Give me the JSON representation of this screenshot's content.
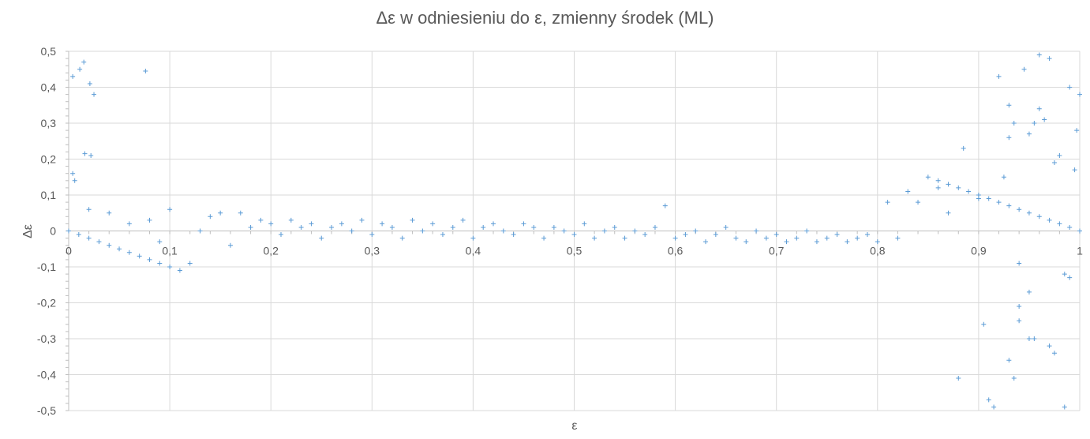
{
  "chart_data": {
    "type": "scatter",
    "title": "Δε w odniesieniu do ε, zmienny środek (ML)",
    "xlabel": "ε",
    "ylabel": "Δε",
    "xlim": [
      0,
      1
    ],
    "ylim": [
      -0.5,
      0.5
    ],
    "x_ticks": [
      "0",
      "0,1",
      "0,2",
      "0,3",
      "0,4",
      "0,5",
      "0,6",
      "0,7",
      "0,8",
      "0,9",
      "1"
    ],
    "y_ticks": [
      "0,5",
      "0,4",
      "0,3",
      "0,2",
      "0,1",
      "0",
      "-0,1",
      "-0,2",
      "-0,3",
      "-0,4",
      "-0,5"
    ],
    "grid": true,
    "marker": "+",
    "series": [
      {
        "color": "#5b9bd5",
        "points": [
          [
            0.0,
            0.0
          ],
          [
            0.01,
            -0.01
          ],
          [
            0.02,
            -0.02
          ],
          [
            0.03,
            -0.03
          ],
          [
            0.04,
            -0.04
          ],
          [
            0.05,
            -0.05
          ],
          [
            0.06,
            -0.06
          ],
          [
            0.07,
            -0.07
          ],
          [
            0.08,
            -0.08
          ],
          [
            0.09,
            -0.09
          ],
          [
            0.1,
            -0.1
          ],
          [
            0.004,
            0.16
          ],
          [
            0.006,
            0.14
          ],
          [
            0.004,
            0.43
          ],
          [
            0.011,
            0.45
          ],
          [
            0.015,
            0.47
          ],
          [
            0.021,
            0.41
          ],
          [
            0.025,
            0.38
          ],
          [
            0.016,
            0.215
          ],
          [
            0.022,
            0.21
          ],
          [
            0.076,
            0.445
          ],
          [
            0.02,
            0.06
          ],
          [
            0.04,
            0.05
          ],
          [
            0.06,
            0.02
          ],
          [
            0.08,
            0.03
          ],
          [
            0.09,
            -0.03
          ],
          [
            0.1,
            0.06
          ],
          [
            0.11,
            -0.11
          ],
          [
            0.12,
            -0.09
          ],
          [
            0.13,
            0.0
          ],
          [
            0.14,
            0.04
          ],
          [
            0.15,
            0.05
          ],
          [
            0.16,
            -0.04
          ],
          [
            0.17,
            0.05
          ],
          [
            0.18,
            0.01
          ],
          [
            0.19,
            0.03
          ],
          [
            0.2,
            0.02
          ],
          [
            0.21,
            -0.01
          ],
          [
            0.22,
            0.03
          ],
          [
            0.23,
            0.01
          ],
          [
            0.24,
            0.02
          ],
          [
            0.25,
            -0.02
          ],
          [
            0.26,
            0.01
          ],
          [
            0.27,
            0.02
          ],
          [
            0.28,
            0.0
          ],
          [
            0.29,
            0.03
          ],
          [
            0.3,
            -0.01
          ],
          [
            0.31,
            0.02
          ],
          [
            0.32,
            0.01
          ],
          [
            0.33,
            -0.02
          ],
          [
            0.34,
            0.03
          ],
          [
            0.35,
            0.0
          ],
          [
            0.36,
            0.02
          ],
          [
            0.37,
            -0.01
          ],
          [
            0.38,
            0.01
          ],
          [
            0.39,
            0.03
          ],
          [
            0.4,
            -0.02
          ],
          [
            0.41,
            0.01
          ],
          [
            0.42,
            0.02
          ],
          [
            0.43,
            0.0
          ],
          [
            0.44,
            -0.01
          ],
          [
            0.45,
            0.02
          ],
          [
            0.46,
            0.01
          ],
          [
            0.47,
            -0.02
          ],
          [
            0.48,
            0.01
          ],
          [
            0.49,
            0.0
          ],
          [
            0.5,
            -0.01
          ],
          [
            0.51,
            0.02
          ],
          [
            0.52,
            -0.02
          ],
          [
            0.53,
            0.0
          ],
          [
            0.54,
            0.01
          ],
          [
            0.55,
            -0.02
          ],
          [
            0.56,
            0.0
          ],
          [
            0.57,
            -0.01
          ],
          [
            0.58,
            0.01
          ],
          [
            0.59,
            0.07
          ],
          [
            0.6,
            -0.02
          ],
          [
            0.61,
            -0.01
          ],
          [
            0.62,
            0.0
          ],
          [
            0.63,
            -0.03
          ],
          [
            0.64,
            -0.01
          ],
          [
            0.65,
            0.01
          ],
          [
            0.66,
            -0.02
          ],
          [
            0.67,
            -0.03
          ],
          [
            0.68,
            0.0
          ],
          [
            0.69,
            -0.02
          ],
          [
            0.7,
            -0.01
          ],
          [
            0.71,
            -0.03
          ],
          [
            0.72,
            -0.02
          ],
          [
            0.73,
            0.0
          ],
          [
            0.74,
            -0.03
          ],
          [
            0.75,
            -0.02
          ],
          [
            0.76,
            -0.01
          ],
          [
            0.77,
            -0.03
          ],
          [
            0.78,
            -0.02
          ],
          [
            0.79,
            -0.01
          ],
          [
            0.8,
            -0.03
          ],
          [
            0.81,
            0.08
          ],
          [
            0.82,
            -0.02
          ],
          [
            0.83,
            0.11
          ],
          [
            0.84,
            0.08
          ],
          [
            0.85,
            0.15
          ],
          [
            0.86,
            0.12
          ],
          [
            0.87,
            0.05
          ],
          [
            0.88,
            -0.41
          ],
          [
            0.86,
            0.14
          ],
          [
            0.87,
            0.13
          ],
          [
            0.88,
            0.12
          ],
          [
            0.89,
            0.11
          ],
          [
            0.9,
            0.1
          ],
          [
            0.91,
            0.09
          ],
          [
            0.92,
            0.08
          ],
          [
            0.93,
            0.07
          ],
          [
            0.94,
            0.06
          ],
          [
            0.95,
            0.05
          ],
          [
            0.96,
            0.04
          ],
          [
            0.97,
            0.03
          ],
          [
            0.98,
            0.02
          ],
          [
            0.99,
            0.01
          ],
          [
            1.0,
            0.0
          ],
          [
            0.885,
            0.23
          ],
          [
            0.9,
            0.09
          ],
          [
            0.905,
            -0.26
          ],
          [
            0.91,
            -0.47
          ],
          [
            0.915,
            -0.49
          ],
          [
            0.92,
            0.43
          ],
          [
            0.925,
            0.15
          ],
          [
            0.93,
            0.35
          ],
          [
            0.93,
            0.26
          ],
          [
            0.935,
            0.3
          ],
          [
            0.94,
            -0.09
          ],
          [
            0.94,
            -0.21
          ],
          [
            0.945,
            0.45
          ],
          [
            0.95,
            0.27
          ],
          [
            0.95,
            -0.17
          ],
          [
            0.955,
            0.3
          ],
          [
            0.96,
            0.34
          ],
          [
            0.96,
            0.49
          ],
          [
            0.965,
            0.31
          ],
          [
            0.97,
            0.48
          ],
          [
            0.975,
            0.19
          ],
          [
            0.98,
            0.21
          ],
          [
            0.985,
            -0.49
          ],
          [
            0.99,
            0.4
          ],
          [
            0.99,
            -0.13
          ],
          [
            0.995,
            0.17
          ],
          [
            0.997,
            0.28
          ],
          [
            1.0,
            0.38
          ],
          [
            0.93,
            -0.36
          ],
          [
            0.935,
            -0.41
          ],
          [
            0.94,
            -0.25
          ],
          [
            0.95,
            -0.3
          ],
          [
            0.955,
            -0.3
          ],
          [
            0.97,
            -0.32
          ],
          [
            0.975,
            -0.34
          ],
          [
            0.985,
            -0.12
          ]
        ]
      }
    ]
  }
}
